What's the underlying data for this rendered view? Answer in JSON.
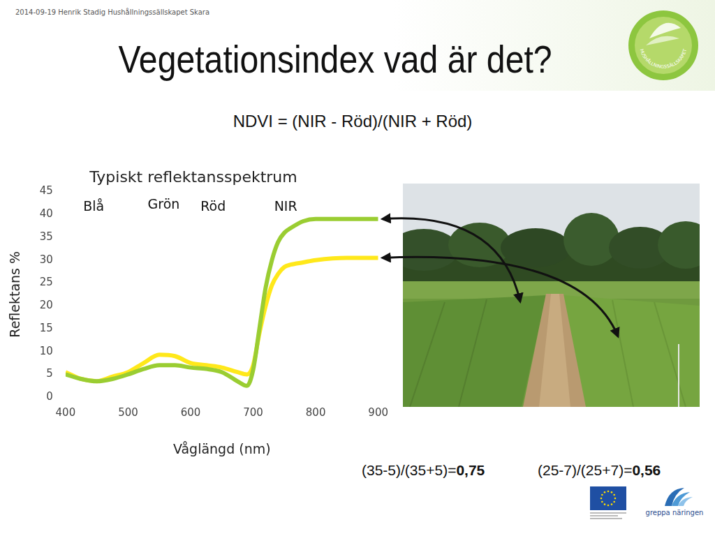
{
  "header": {
    "text": "2014-09-19 Henrik Stadig Hushållningssällskapet Skara"
  },
  "title": "Vegetationsindex vad är det?",
  "formula": "NDVI = (NIR - Röd)/(NIR + Röd)",
  "chart_data": {
    "type": "line",
    "title": "Typiskt reflektansspektrum",
    "x_label": "Våglängd (nm)",
    "y_label": "Reflektans %",
    "x": [
      400,
      425,
      450,
      475,
      500,
      525,
      550,
      575,
      600,
      625,
      650,
      675,
      690,
      700,
      710,
      720,
      730,
      740,
      750,
      760,
      780,
      800,
      850,
      900
    ],
    "series": [
      {
        "color": "#9acd32",
        "values": [
          5,
          4,
          3.5,
          4,
          5,
          6.2,
          7,
          7,
          6.5,
          6.2,
          5.5,
          3.5,
          2.5,
          6,
          15,
          24,
          30,
          34,
          36,
          37,
          38.5,
          39,
          39,
          39
        ]
      },
      {
        "color": "#ffe81a",
        "values": [
          5.5,
          4,
          3.5,
          4.5,
          5.5,
          7.5,
          9.3,
          9,
          7.5,
          7,
          6.5,
          5.5,
          5,
          7,
          14,
          20,
          24.5,
          27,
          28.5,
          29,
          29.5,
          30,
          30.5,
          30.5
        ]
      }
    ],
    "xlim": [
      400,
      900
    ],
    "xticks": [
      400,
      500,
      600,
      700,
      800,
      900
    ],
    "ylim": [
      0,
      45
    ],
    "yticks": [
      0,
      5,
      10,
      15,
      20,
      25,
      30,
      35,
      40,
      45
    ],
    "grid": false,
    "annotations": [
      {
        "text": "Blå",
        "x": 445,
        "y": 41.5
      },
      {
        "text": "Grön",
        "x": 557,
        "y": 42
      },
      {
        "text": "Röd",
        "x": 636,
        "y": 41.5
      },
      {
        "text": "NIR",
        "x": 752,
        "y": 41.5
      }
    ]
  },
  "calculations": [
    {
      "expression": "(35-5)/(35+5)=",
      "result": "0,75"
    },
    {
      "expression": "(25-7)/(25+7)=",
      "result": "0,56"
    }
  ],
  "logos": {
    "organisation": "HUSHÅLLNINGSSÄLLSKAPET",
    "partner": "greppa näringen"
  }
}
